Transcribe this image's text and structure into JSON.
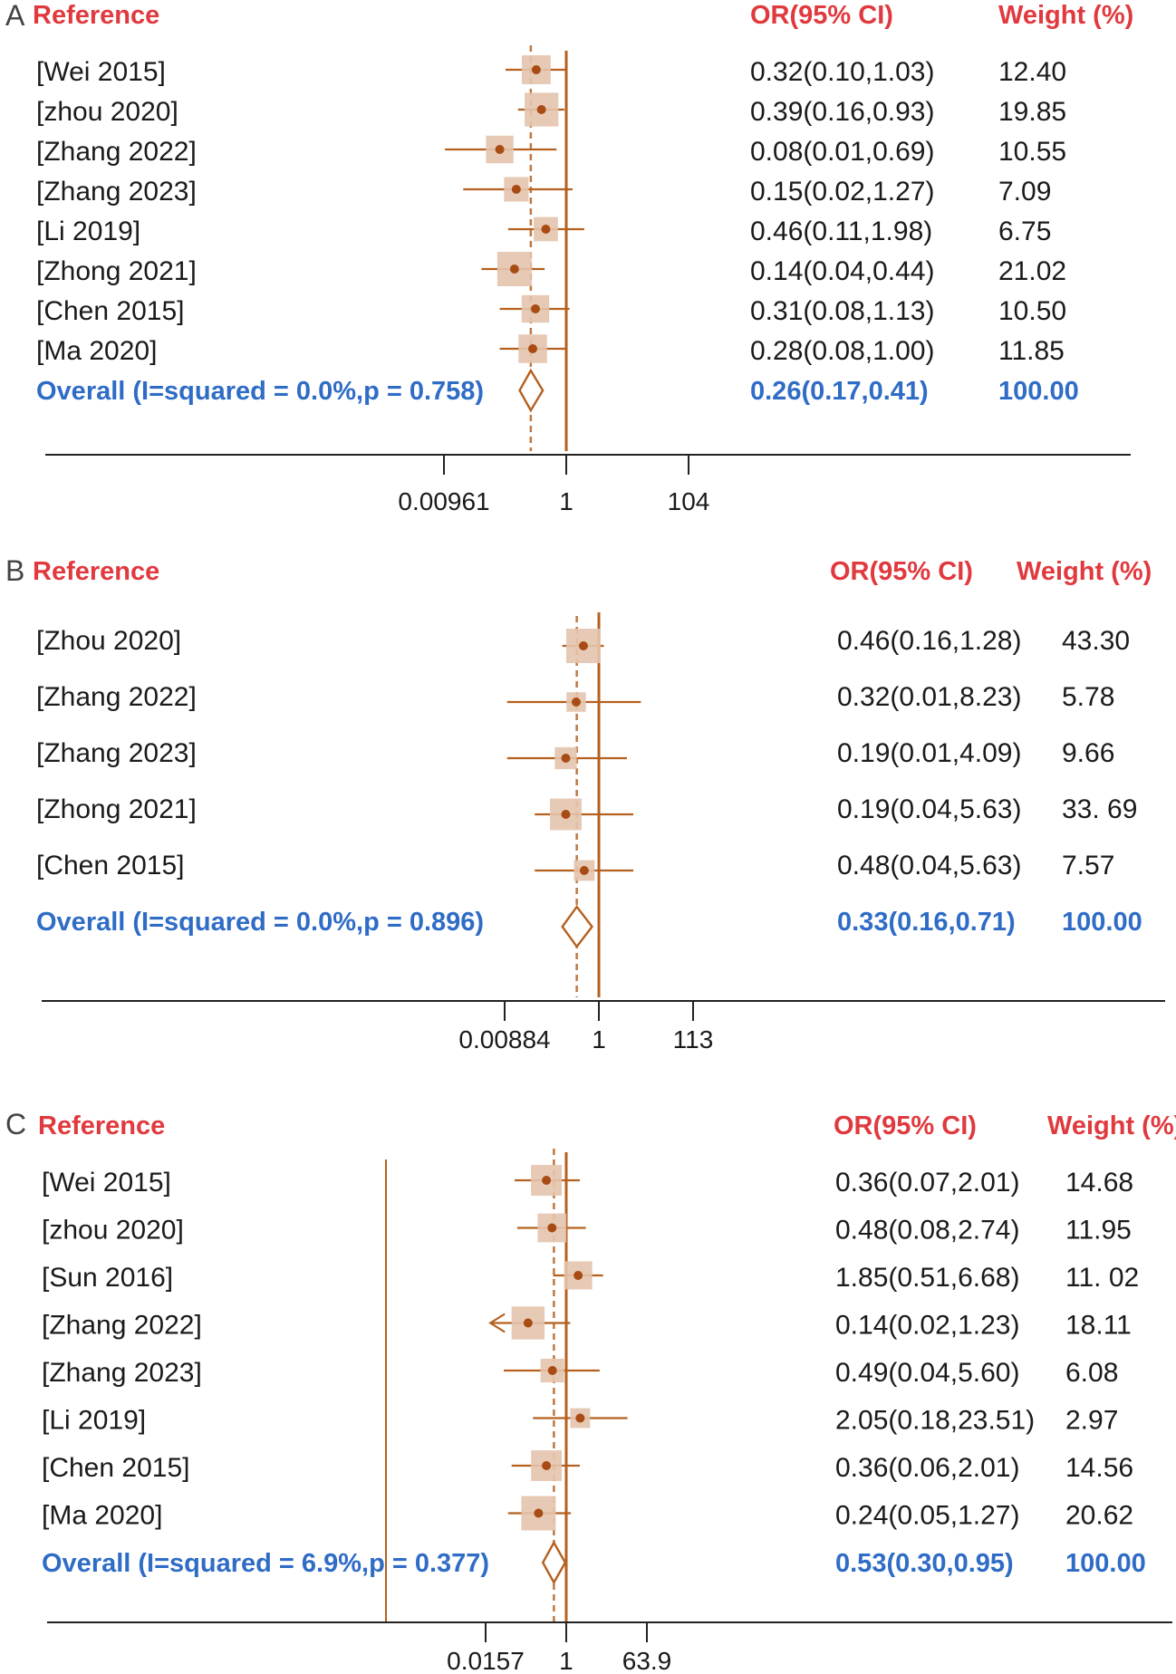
{
  "colors": {
    "header": "#e0393e",
    "overall": "#2f6cc6",
    "line": "#b5601f",
    "box": "#e4c4ad",
    "dot": "#a84b14",
    "text": "#1a1a1a",
    "axis": "#222222"
  },
  "chart_data": [
    {
      "type": "forest",
      "panel_label": "A",
      "headers": {
        "study": "Reference",
        "effect": "OR(95% CI)",
        "weight": "Weight (%)"
      },
      "scale": "log",
      "null_value": 1,
      "axis_ticks": [
        {
          "value": 0.00961,
          "label": "0.00961"
        },
        {
          "value": 1,
          "label": "1"
        },
        {
          "value": 104,
          "label": "104"
        }
      ],
      "xlim": [
        0.000185,
        7180
      ],
      "studies": [
        {
          "name": "[Wei 2015]",
          "or": 0.32,
          "lo": 0.1,
          "hi": 1.03,
          "or_text": "0.32(0.10,1.03)",
          "weight": 12.4,
          "weight_text": "12.40"
        },
        {
          "name": "[zhou 2020]",
          "or": 0.39,
          "lo": 0.16,
          "hi": 0.93,
          "or_text": "0.39(0.16,0.93)",
          "weight": 19.85,
          "weight_text": "19.85"
        },
        {
          "name": "[Zhang 2022]",
          "or": 0.08,
          "lo": 0.01,
          "hi": 0.69,
          "or_text": "0.08(0.01,0.69)",
          "weight": 10.55,
          "weight_text": "10.55"
        },
        {
          "name": "[Zhang 2023]",
          "or": 0.15,
          "lo": 0.02,
          "hi": 1.27,
          "or_text": "0.15(0.02,1.27)",
          "weight": 7.09,
          "weight_text": "7.09"
        },
        {
          "name": "[Li 2019]",
          "or": 0.46,
          "lo": 0.11,
          "hi": 1.98,
          "or_text": "0.46(0.11,1.98)",
          "weight": 6.75,
          "weight_text": "6.75"
        },
        {
          "name": "[Zhong 2021]",
          "or": 0.14,
          "lo": 0.04,
          "hi": 0.44,
          "or_text": "0.14(0.04,0.44)",
          "weight": 21.02,
          "weight_text": "21.02"
        },
        {
          "name": "[Chen 2015]",
          "or": 0.31,
          "lo": 0.08,
          "hi": 1.13,
          "or_text": "0.31(0.08,1.13)",
          "weight": 10.5,
          "weight_text": "10.50"
        },
        {
          "name": "[Ma 2020]",
          "or": 0.28,
          "lo": 0.08,
          "hi": 1.0,
          "or_text": "0.28(0.08,1.00)",
          "weight": 11.85,
          "weight_text": "11.85"
        }
      ],
      "overall": {
        "label": "Overall (I=squared = 0.0%,p = 0.758)",
        "or": 0.26,
        "lo": 0.17,
        "hi": 0.41,
        "or_text": "0.26(0.17,0.41)",
        "weight_text": "100.00"
      }
    },
    {
      "type": "forest",
      "panel_label": "B",
      "headers": {
        "study": "Reference",
        "effect": "OR(95% CI)",
        "weight": "Weight (%)"
      },
      "scale": "log",
      "null_value": 1,
      "axis_ticks": [
        {
          "value": 0.00884,
          "label": "0.00884"
        },
        {
          "value": 1,
          "label": "1"
        },
        {
          "value": 113,
          "label": "113"
        }
      ],
      "xlim": [
        2.15e-07,
        6000000
      ],
      "studies": [
        {
          "name": "[Zhou 2020]",
          "or": 0.46,
          "lo": 0.16,
          "hi": 1.28,
          "or_text": "0.46(0.16,1.28)",
          "weight": 43.3,
          "weight_text": "43.30"
        },
        {
          "name": "[Zhang 2022]",
          "or": 0.32,
          "lo": 0.01,
          "hi": 8.23,
          "or_text": "0.32(0.01,8.23)",
          "weight": 5.78,
          "weight_text": "5.78"
        },
        {
          "name": "[Zhang 2023]",
          "or": 0.19,
          "lo": 0.01,
          "hi": 4.09,
          "or_text": "0.19(0.01,4.09)",
          "weight": 9.66,
          "weight_text": "9.66"
        },
        {
          "name": "[Zhong 2021]",
          "or": 0.19,
          "lo": 0.04,
          "hi": 5.63,
          "or_text": "0.19(0.04,5.63)",
          "weight": 33.69,
          "weight_text": "33. 69"
        },
        {
          "name": "[Chen 2015]",
          "or": 0.48,
          "lo": 0.04,
          "hi": 5.63,
          "or_text": "0.48(0.04,5.63)",
          "weight": 7.57,
          "weight_text": "7.57"
        }
      ],
      "overall": {
        "label": "Overall (I=squared = 0.0%,p = 0.896)",
        "or": 0.33,
        "lo": 0.16,
        "hi": 0.71,
        "or_text": "0.33(0.16,0.71)",
        "weight_text": "100.00"
      }
    },
    {
      "type": "forest",
      "panel_label": "C",
      "headers": {
        "study": "Reference",
        "effect": "OR(95% CI)",
        "weight": "Weight (%)"
      },
      "scale": "log",
      "null_value": 1,
      "axis_ticks": [
        {
          "value": 0.0157,
          "label": "0.0157"
        },
        {
          "value": 1,
          "label": "1"
        },
        {
          "value": 63.9,
          "label": "63.9"
        }
      ],
      "xlim": [
        0.00011,
        1440
      ],
      "studies": [
        {
          "name": "[Wei 2015]",
          "or": 0.36,
          "lo": 0.07,
          "hi": 2.01,
          "or_text": "0.36(0.07,2.01)",
          "weight": 14.68,
          "weight_text": "14.68"
        },
        {
          "name": "[zhou 2020]",
          "or": 0.48,
          "lo": 0.08,
          "hi": 2.74,
          "or_text": "0.48(0.08,2.74)",
          "weight": 11.95,
          "weight_text": "11.95"
        },
        {
          "name": "[Sun 2016]",
          "or": 1.85,
          "lo": 0.51,
          "hi": 6.68,
          "or_text": "1.85(0.51,6.68)",
          "weight": 11.02,
          "weight_text": "11. 02"
        },
        {
          "name": "[Zhang 2022]",
          "or": 0.14,
          "lo": 0.02,
          "hi": 1.23,
          "or_text": "0.14(0.02,1.23)",
          "weight": 18.11,
          "weight_text": "18.11",
          "arrow_left": true
        },
        {
          "name": "[Zhang 2023]",
          "or": 0.49,
          "lo": 0.04,
          "hi": 5.6,
          "or_text": "0.49(0.04,5.60)",
          "weight": 6.08,
          "weight_text": "6.08"
        },
        {
          "name": "[Li 2019]",
          "or": 2.05,
          "lo": 0.18,
          "hi": 23.51,
          "or_text": "2.05(0.18,23.51)",
          "weight": 2.97,
          "weight_text": "2.97"
        },
        {
          "name": "[Chen 2015]",
          "or": 0.36,
          "lo": 0.06,
          "hi": 2.01,
          "or_text": "0.36(0.06,2.01)",
          "weight": 14.56,
          "weight_text": "14.56"
        },
        {
          "name": "[Ma 2020]",
          "or": 0.24,
          "lo": 0.05,
          "hi": 1.27,
          "or_text": "0.24(0.05,1.27)",
          "weight": 20.62,
          "weight_text": "20.62"
        }
      ],
      "overall": {
        "label": "Overall (I=squared = 6.9%,p = 0.377)",
        "or": 0.53,
        "lo": 0.3,
        "hi": 0.95,
        "or_text": "0.53(0.30,0.95)",
        "weight_text": "100.00"
      }
    }
  ]
}
